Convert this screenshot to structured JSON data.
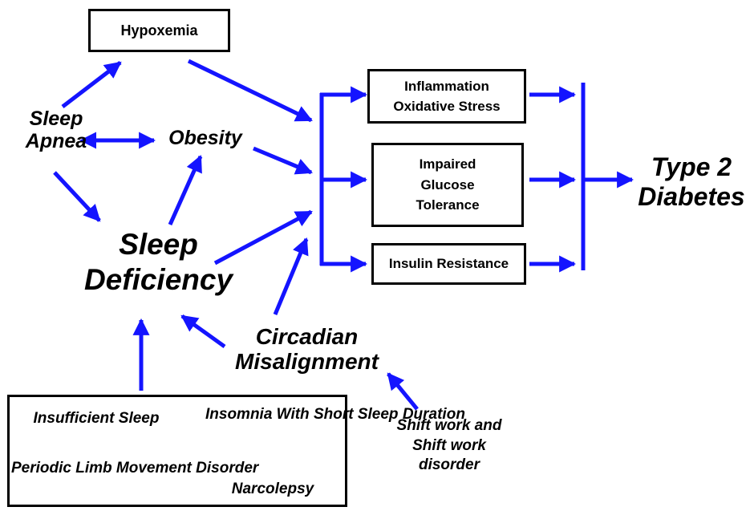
{
  "colors": {
    "arrow": "#1414ff",
    "box_border": "#000000",
    "text": "#000000"
  },
  "nodes": {
    "hypoxemia": "Hypoxemia",
    "sleep_apnea": [
      "Sleep",
      "Apnea"
    ],
    "obesity": "Obesity",
    "sleep_deficiency": [
      "Sleep",
      "Deficiency"
    ],
    "circadian_misalignment": [
      "Circadian",
      "Misalignment"
    ],
    "shift_work": [
      "Shift work and",
      "Shift work",
      "disorder"
    ],
    "inflammation": [
      "Inflammation",
      "Oxidative Stress"
    ],
    "impaired_glucose": [
      "Impaired",
      "Glucose",
      "Tolerance"
    ],
    "insulin_resistance": "Insulin Resistance",
    "type2_diabetes": [
      "Type 2",
      "Diabetes"
    ]
  },
  "disorders_box": {
    "insufficient_sleep": [
      "Insufficient",
      "Sleep"
    ],
    "insomnia": [
      "Insomnia With",
      "Short Sleep",
      "Duration"
    ],
    "periodic_limb": [
      "Periodic Limb",
      "Movement Disorder"
    ],
    "narcolepsy": "Narcolepsy"
  }
}
